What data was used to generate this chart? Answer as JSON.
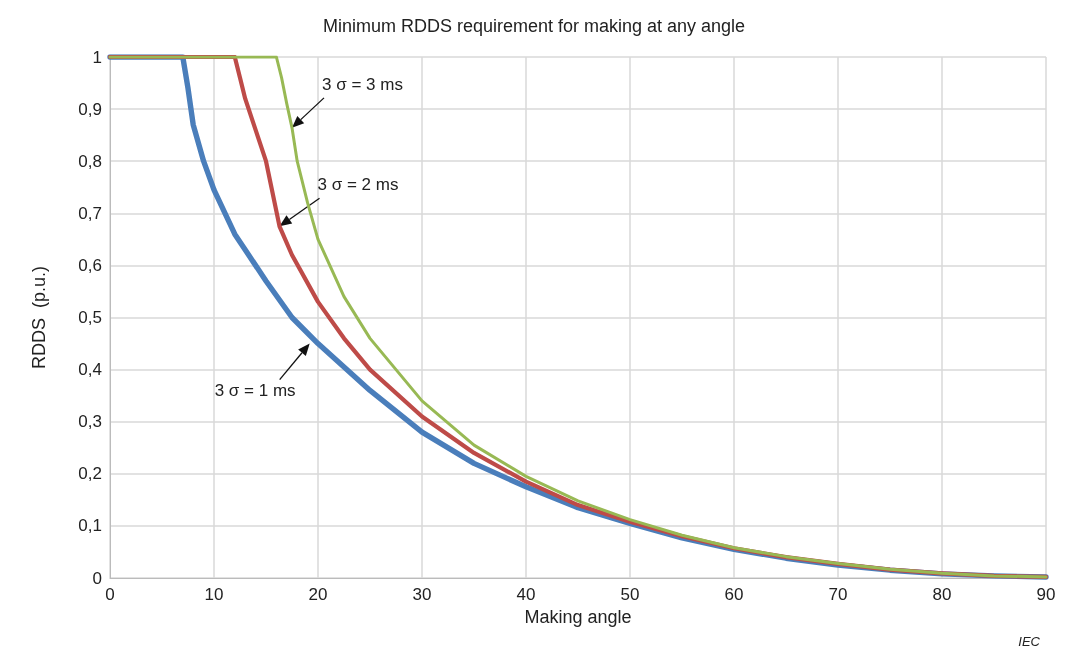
{
  "chart_data": {
    "type": "line",
    "title": "Minimum RDDS requirement for making at any angle",
    "xlabel": "Making angle",
    "ylabel": "RDDS  (p.u.)",
    "xlim": [
      0,
      90
    ],
    "xticks": [
      0,
      10,
      20,
      30,
      40,
      50,
      60,
      70,
      80,
      90
    ],
    "ylim": [
      0,
      1
    ],
    "yticks": [
      0,
      {
        "value": 0.1,
        "label": "0,1"
      },
      {
        "value": 0.2,
        "label": "0,2"
      },
      {
        "value": 0.3,
        "label": "0,3"
      },
      {
        "value": 0.4,
        "label": "0,4"
      },
      {
        "value": 0.5,
        "label": "0,5"
      },
      {
        "value": 0.6,
        "label": "0,6"
      },
      {
        "value": 0.7,
        "label": "0,7"
      },
      {
        "value": 0.8,
        "label": "0,8"
      },
      {
        "value": 0.9,
        "label": "0,9"
      },
      1
    ],
    "grid": true,
    "marker": "none",
    "line_style": "solid",
    "series": [
      {
        "color": "#4a7ebb",
        "x": [
          0,
          7,
          7.5,
          8,
          9,
          10,
          12,
          15,
          17.5,
          20,
          25,
          30,
          35,
          40,
          45,
          50,
          55,
          60,
          65,
          70,
          75,
          80,
          85,
          90
        ],
        "values": [
          1,
          1,
          0.94,
          0.87,
          0.8,
          0.745,
          0.66,
          0.57,
          0.5,
          0.45,
          0.36,
          0.28,
          0.22,
          0.175,
          0.135,
          0.105,
          0.077,
          0.055,
          0.038,
          0.025,
          0.015,
          0.008,
          0.004,
          0.002
        ]
      },
      {
        "color": "#be4b48",
        "x": [
          0,
          12,
          12.5,
          13,
          14,
          15,
          16.3,
          17.5,
          20,
          22.5,
          25,
          30,
          35,
          40,
          45,
          50,
          55,
          60,
          65,
          70,
          75,
          80,
          85,
          90
        ],
        "values": [
          1,
          1,
          0.96,
          0.92,
          0.86,
          0.8,
          0.675,
          0.62,
          0.53,
          0.46,
          0.4,
          0.31,
          0.24,
          0.185,
          0.14,
          0.108,
          0.08,
          0.057,
          0.04,
          0.027,
          0.016,
          0.009,
          0.004,
          0.002
        ]
      },
      {
        "color": "#98b954",
        "x": [
          0,
          16,
          16.5,
          17,
          17.5,
          18,
          19,
          20,
          22.5,
          25,
          30,
          35,
          40,
          45,
          50,
          55,
          60,
          65,
          70,
          75,
          80,
          85,
          90
        ],
        "values": [
          1,
          1,
          0.96,
          0.91,
          0.864,
          0.8,
          0.72,
          0.65,
          0.54,
          0.46,
          0.34,
          0.255,
          0.195,
          0.148,
          0.112,
          0.082,
          0.058,
          0.041,
          0.028,
          0.017,
          0.009,
          0.004,
          0.002
        ]
      }
    ],
    "annotations": [
      {
        "text": "3 σ = 3 ms",
        "x": 17.5,
        "y": 0.864
      },
      {
        "text": "3 σ = 2 ms",
        "x": 16.3,
        "y": 0.675
      },
      {
        "text": "3 σ = 1 ms",
        "x": 19.2,
        "y": 0.45
      },
      "IEC"
    ]
  }
}
